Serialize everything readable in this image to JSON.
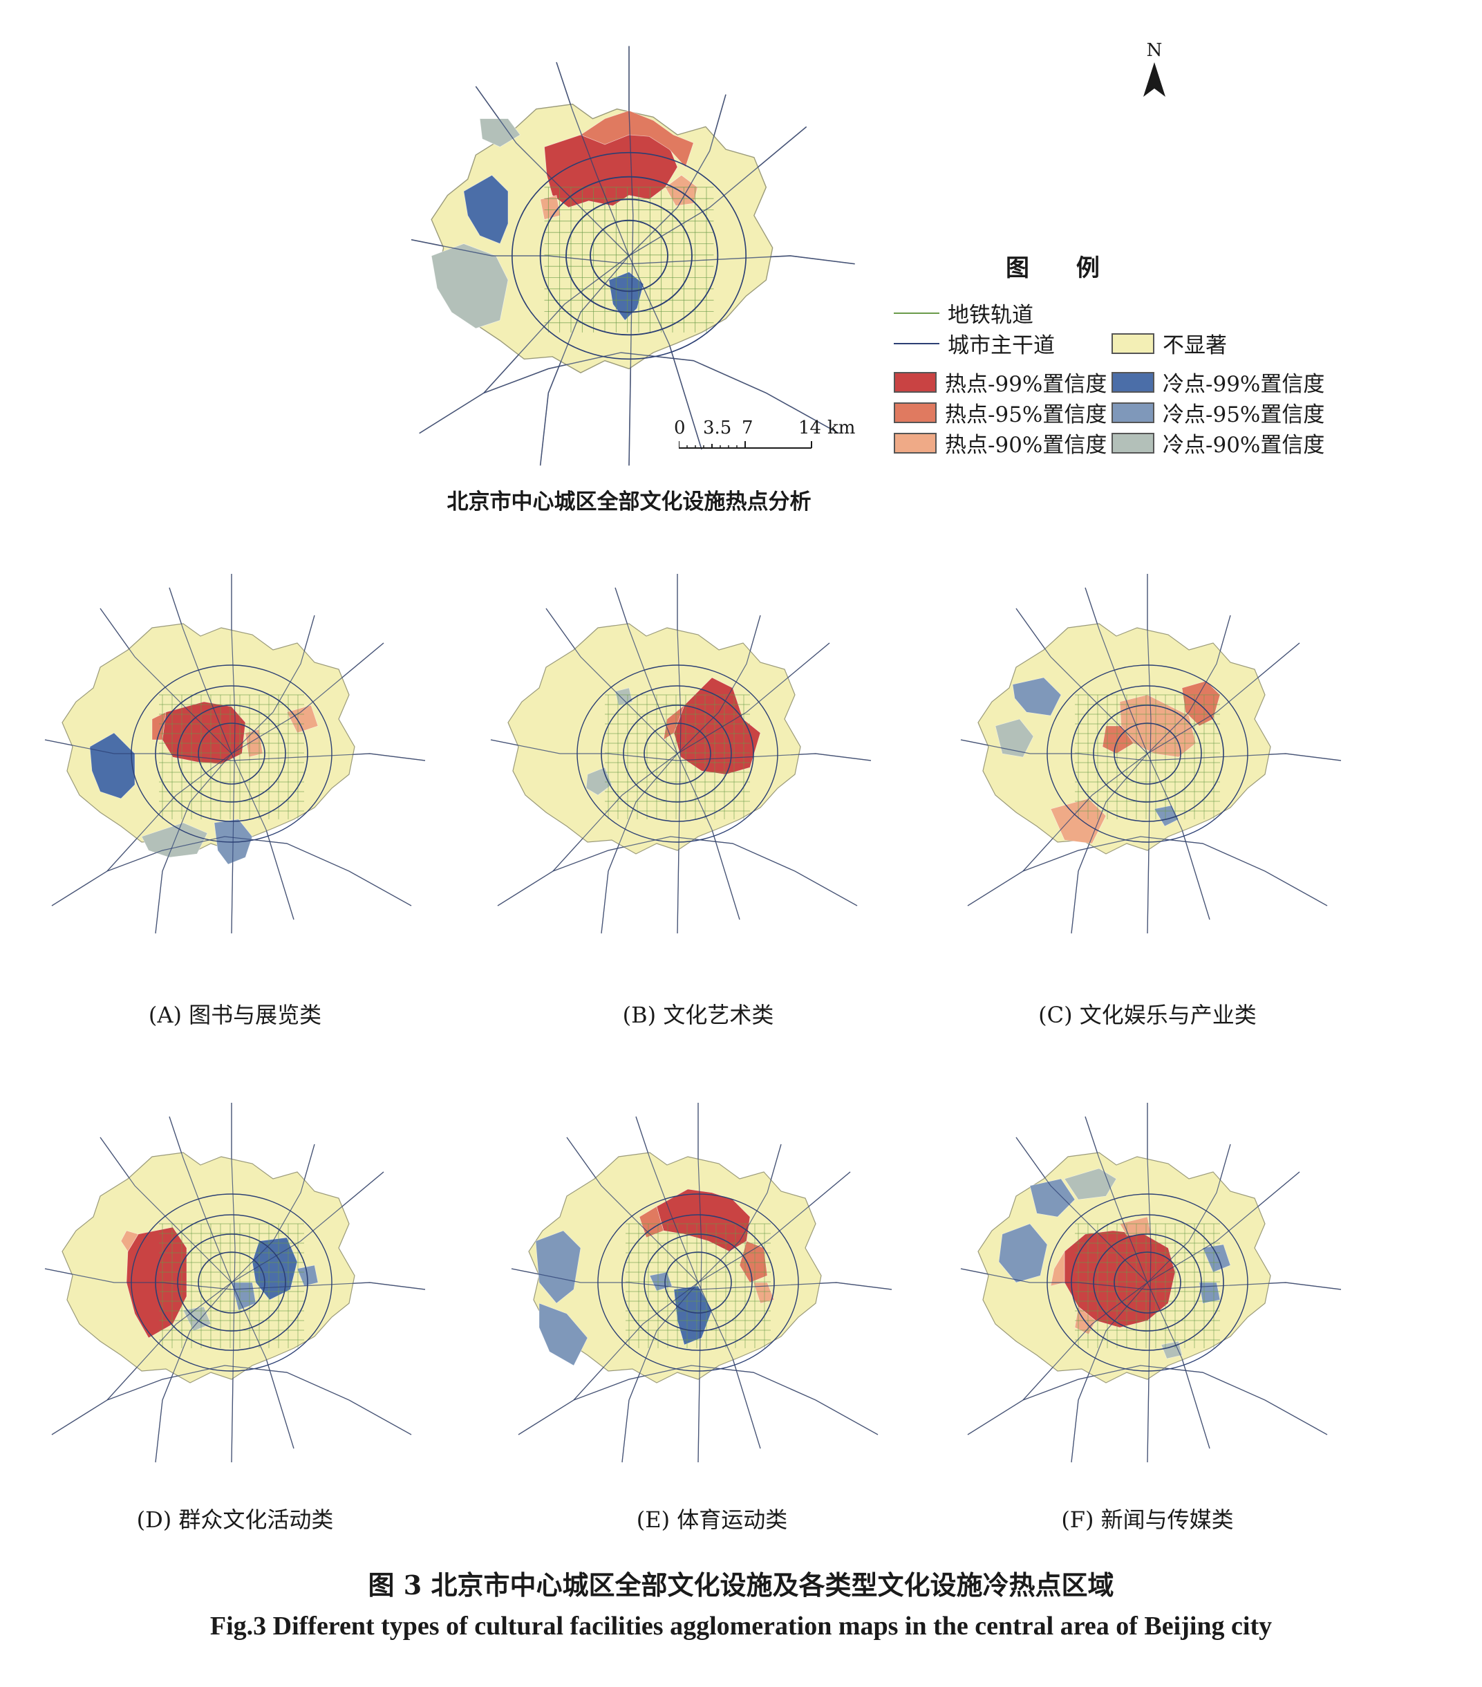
{
  "north_label": "N",
  "legend": {
    "title": "图 例",
    "lines": [
      {
        "label": "地铁轨道",
        "color": "#6a9a4a"
      },
      {
        "label": "城市主干道",
        "color": "#2b3f73"
      }
    ],
    "insignificant": {
      "label": "不显著",
      "color": "#f3efb5"
    },
    "hot": [
      {
        "label": "热点-99%置信度",
        "color": "#c94343"
      },
      {
        "label": "热点-95%置信度",
        "color": "#e07a60"
      },
      {
        "label": "热点-90%置信度",
        "color": "#efaa87"
      }
    ],
    "cold": [
      {
        "label": "冷点-99%置信度",
        "color": "#4b6ea8"
      },
      {
        "label": "冷点-95%置信度",
        "color": "#7f98ba"
      },
      {
        "label": "冷点-90%置信度",
        "color": "#b3c0b9"
      }
    ]
  },
  "scale_bar": {
    "ticks": [
      "0",
      "3.5",
      "7",
      "14"
    ],
    "unit": "km"
  },
  "main_map": {
    "caption": "北京市中心城区全部文化设施热点分析"
  },
  "panels": [
    {
      "id": "A",
      "caption": "(A)  图书与展览类"
    },
    {
      "id": "B",
      "caption": "(B)  文化艺术类"
    },
    {
      "id": "C",
      "caption": "(C)  文化娱乐与产业类"
    },
    {
      "id": "D",
      "caption": "(D)  群众文化活动类"
    },
    {
      "id": "E",
      "caption": "(E)  体育运动类"
    },
    {
      "id": "F",
      "caption": "(F)  新闻与传媒类"
    }
  ],
  "figure_title_cn": "图 3    北京市中心城区全部文化设施及各类型文化设施冷热点区域",
  "figure_title_en": "Fig.3    Different types of cultural facilities agglomeration maps in the central area of Beijing city"
}
